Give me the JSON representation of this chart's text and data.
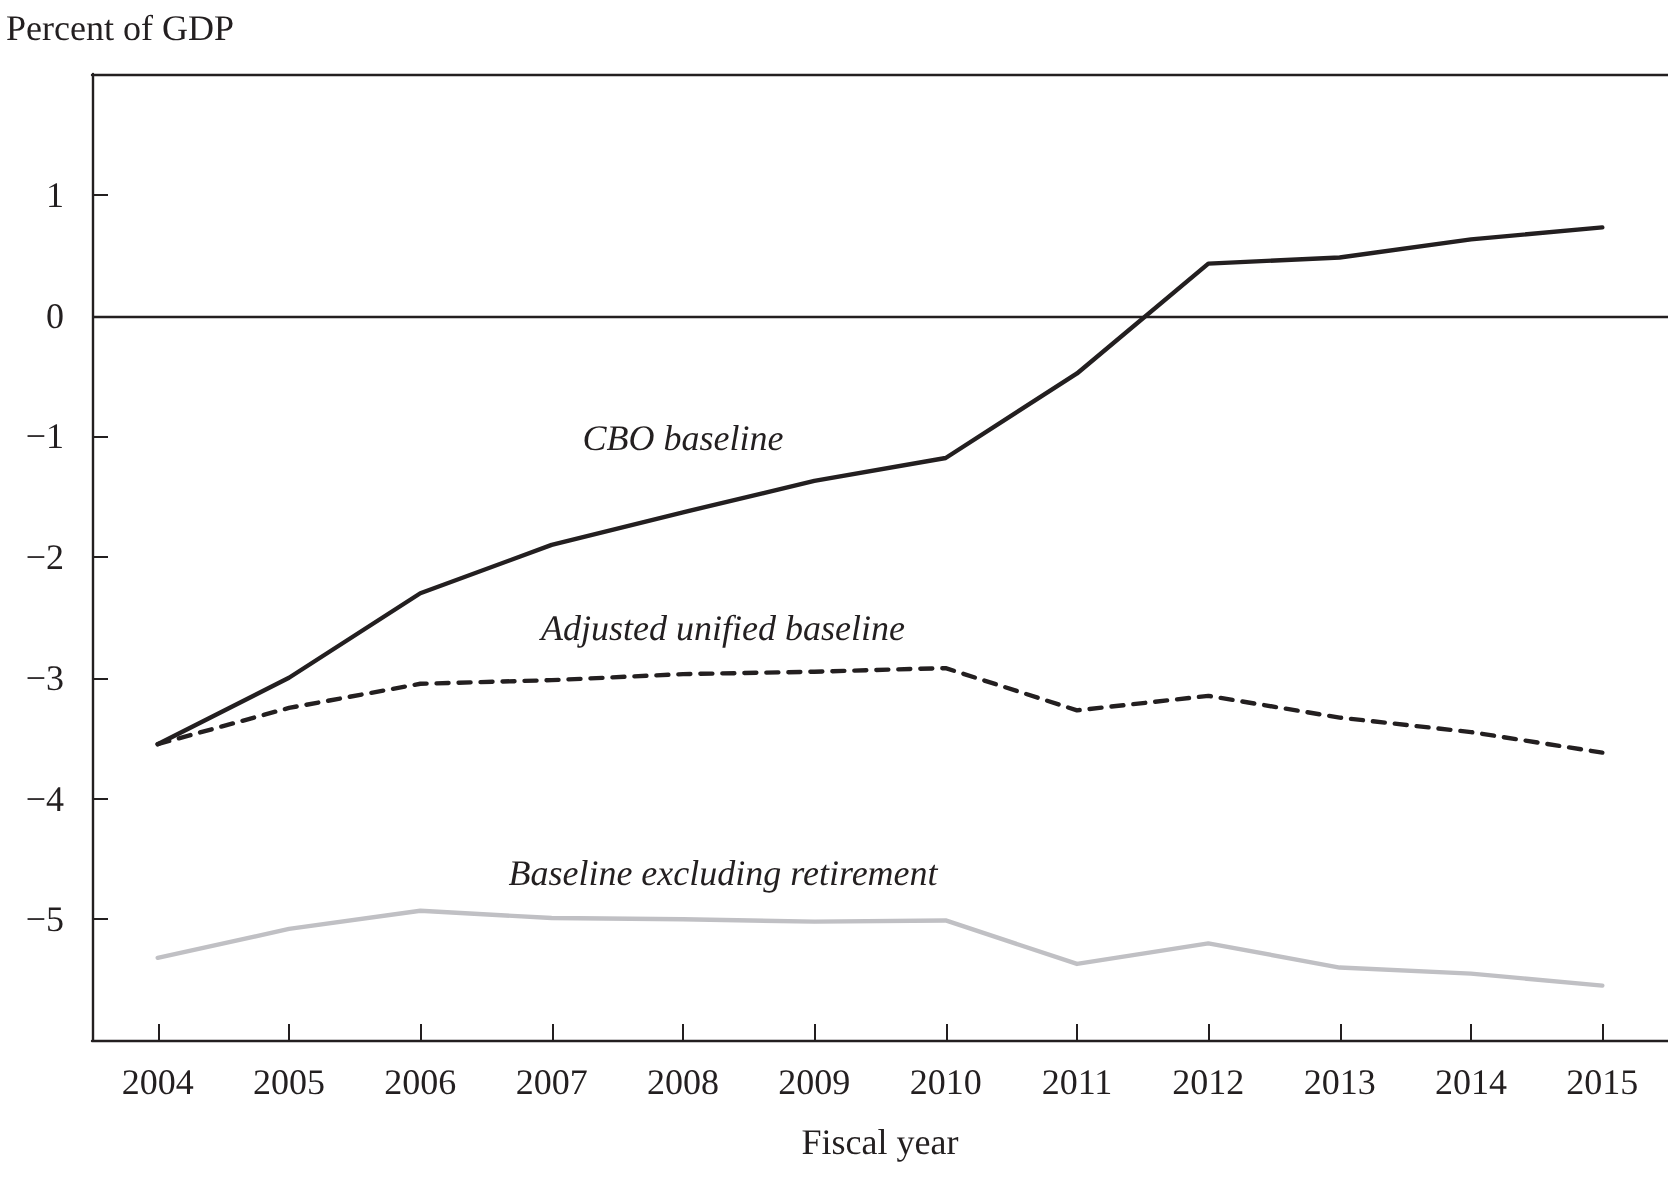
{
  "chart_data": {
    "type": "line",
    "ylabel": "Percent of GDP",
    "xlabel": "Fiscal year",
    "categories": [
      "2004",
      "2005",
      "2006",
      "2007",
      "2008",
      "2009",
      "2010",
      "2011",
      "2012",
      "2013",
      "2014",
      "2015"
    ],
    "series": [
      {
        "name": "CBO baseline",
        "color": "#231f20",
        "line_style": "solid",
        "values": [
          -3.55,
          -3.0,
          -2.3,
          -1.9,
          -1.63,
          -1.37,
          -1.18,
          -0.48,
          0.43,
          0.48,
          0.63,
          0.73
        ]
      },
      {
        "name": "Adjusted unified baseline",
        "color": "#231f20",
        "line_style": "dashed",
        "values": [
          -3.55,
          -3.25,
          -3.05,
          -3.02,
          -2.97,
          -2.95,
          -2.92,
          -3.27,
          -3.15,
          -3.33,
          -3.45,
          -3.62
        ]
      },
      {
        "name": "Baseline excluding retirement",
        "color": "#c0c0c4",
        "line_style": "solid",
        "values": [
          -5.32,
          -5.08,
          -4.93,
          -4.99,
          -5.0,
          -5.02,
          -5.01,
          -5.37,
          -5.2,
          -5.4,
          -5.45,
          -5.55
        ]
      }
    ],
    "ylim": [
      -6,
      2
    ],
    "yticks": [
      -5,
      -4,
      -3,
      -2,
      -1,
      0,
      1
    ],
    "ref_lines": [
      {
        "axis": "y",
        "value": 0,
        "color": "#231f20"
      }
    ],
    "grid": false,
    "legend": false,
    "marker": "none"
  }
}
